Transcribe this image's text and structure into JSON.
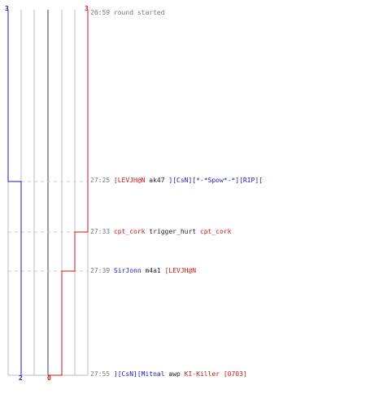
{
  "header": {
    "score_top_left": "3",
    "score_top_right": "3",
    "start_time": "26:59",
    "start_text": "round started"
  },
  "events": [
    {
      "time": "27:25",
      "attacker": "[LEVJH@N",
      "attacker_team": "red",
      "weapon": "ak47",
      "victim": "][CsN][*-*Spow*-*][RIP][",
      "victim_team": "blue"
    },
    {
      "time": "27:33",
      "attacker": "cpt_cork",
      "attacker_team": "red",
      "weapon": "trigger_hurt",
      "victim": "cpt_cork",
      "victim_team": "red"
    },
    {
      "time": "27:39",
      "attacker": "SirJonn",
      "attacker_team": "blue",
      "weapon": "m4a1",
      "victim": "[LEVJH@N",
      "victim_team": "red"
    },
    {
      "time": "27:55",
      "attacker": "][CsN][Mitnal",
      "attacker_team": "blue",
      "weapon": "awp",
      "victim": "KI-Killer [0703]",
      "victim_team": "red"
    }
  ],
  "footer": {
    "score_bottom_blue": "2",
    "score_bottom_red": "0"
  },
  "colors": {
    "blue": "#1a1abf",
    "red": "#c61b1b",
    "grid": "#bdbdbd",
    "dash": "#c8c8c8",
    "center": "#777777",
    "label": "#7a7a7a",
    "text": "#222222"
  }
}
